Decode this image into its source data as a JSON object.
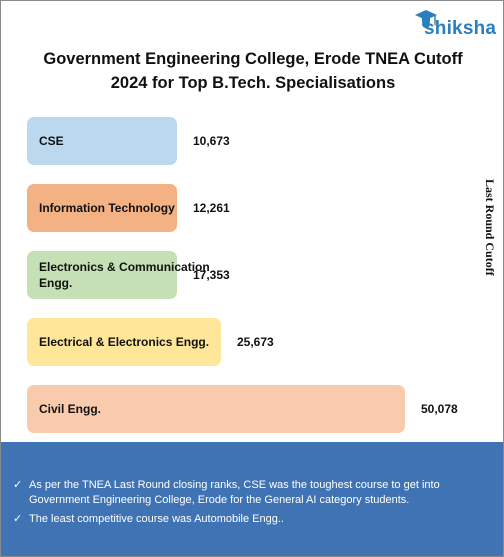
{
  "brand": {
    "name": "shiksha"
  },
  "colors": {
    "cse": "#bcd8ef",
    "it": "#f4b183",
    "ece": "#c5e0b4",
    "eee": "#ffe699",
    "civil": "#f8cbad",
    "panel": "#3f73b4"
  },
  "chart_data": {
    "type": "bar",
    "orientation": "horizontal",
    "title": "Government Engineering College, Erode TNEA Cutoff 2024 for Top B.Tech. Specialisations",
    "title_line1": "Government Engineering College, Erode TNEA Cutoff",
    "title_line2": "2024 for Top B.Tech. Specialisations",
    "ylabel": "Last Round Cutoff",
    "categories": [
      "CSE",
      "Information Technology",
      "Electronics & Communication Engg.",
      "Electrical & Electronics Engg.",
      "Civil Engg."
    ],
    "values": [
      10673,
      12261,
      17353,
      25673,
      50078
    ],
    "value_labels": [
      "10,673",
      "12,261",
      "17,353",
      "25,673",
      "50,078"
    ],
    "colors": [
      "#bcd8ef",
      "#f4b183",
      "#c5e0b4",
      "#ffe699",
      "#f8cbad"
    ],
    "grid": false,
    "legend": "none"
  },
  "notes": [
    "As per the TNEA Last Round closing ranks, CSE was the toughest course to get into Government Engineering College, Erode for the General AI category students.",
    "The least competitive course was Automobile Engg.."
  ]
}
